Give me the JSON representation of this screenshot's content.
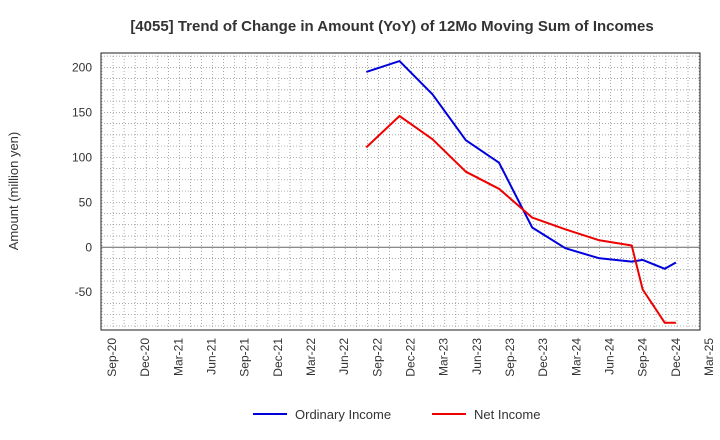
{
  "chart_data": {
    "type": "line",
    "title": "[4055]  Trend of Change in Amount (YoY) of 12Mo Moving Sum of Incomes",
    "xlabel": "",
    "ylabel": "Amount (million yen)",
    "x_ticks": [
      "Sep-20",
      "Dec-20",
      "Mar-21",
      "Jun-21",
      "Sep-21",
      "Dec-21",
      "Mar-22",
      "Jun-22",
      "Sep-22",
      "Dec-22",
      "Mar-23",
      "Jun-23",
      "Sep-23",
      "Dec-23",
      "Mar-24",
      "Jun-24",
      "Sep-24",
      "Dec-24",
      "Mar-25"
    ],
    "y_ticks": [
      200,
      150,
      100,
      50,
      0,
      -50
    ],
    "ylim": [
      -92,
      216
    ],
    "grid": true,
    "legend_position": "bottom",
    "x": [
      "Aug-22",
      "Nov-22",
      "Feb-23",
      "May-23",
      "Aug-23",
      "Nov-23",
      "Feb-24",
      "May-24",
      "Aug-24",
      "Sep-24",
      "Nov-24",
      "Dec-24"
    ],
    "series": [
      {
        "name": "Ordinary Income",
        "color": "#0000dd",
        "values": [
          195,
          207,
          170,
          119,
          94,
          22,
          -1,
          -12,
          -16,
          -14,
          -24,
          -17
        ]
      },
      {
        "name": "Net Income",
        "color": "#ee0000",
        "values": [
          111,
          146,
          120,
          84,
          65,
          33,
          20,
          8,
          2,
          -47,
          -84,
          -84
        ]
      }
    ]
  }
}
